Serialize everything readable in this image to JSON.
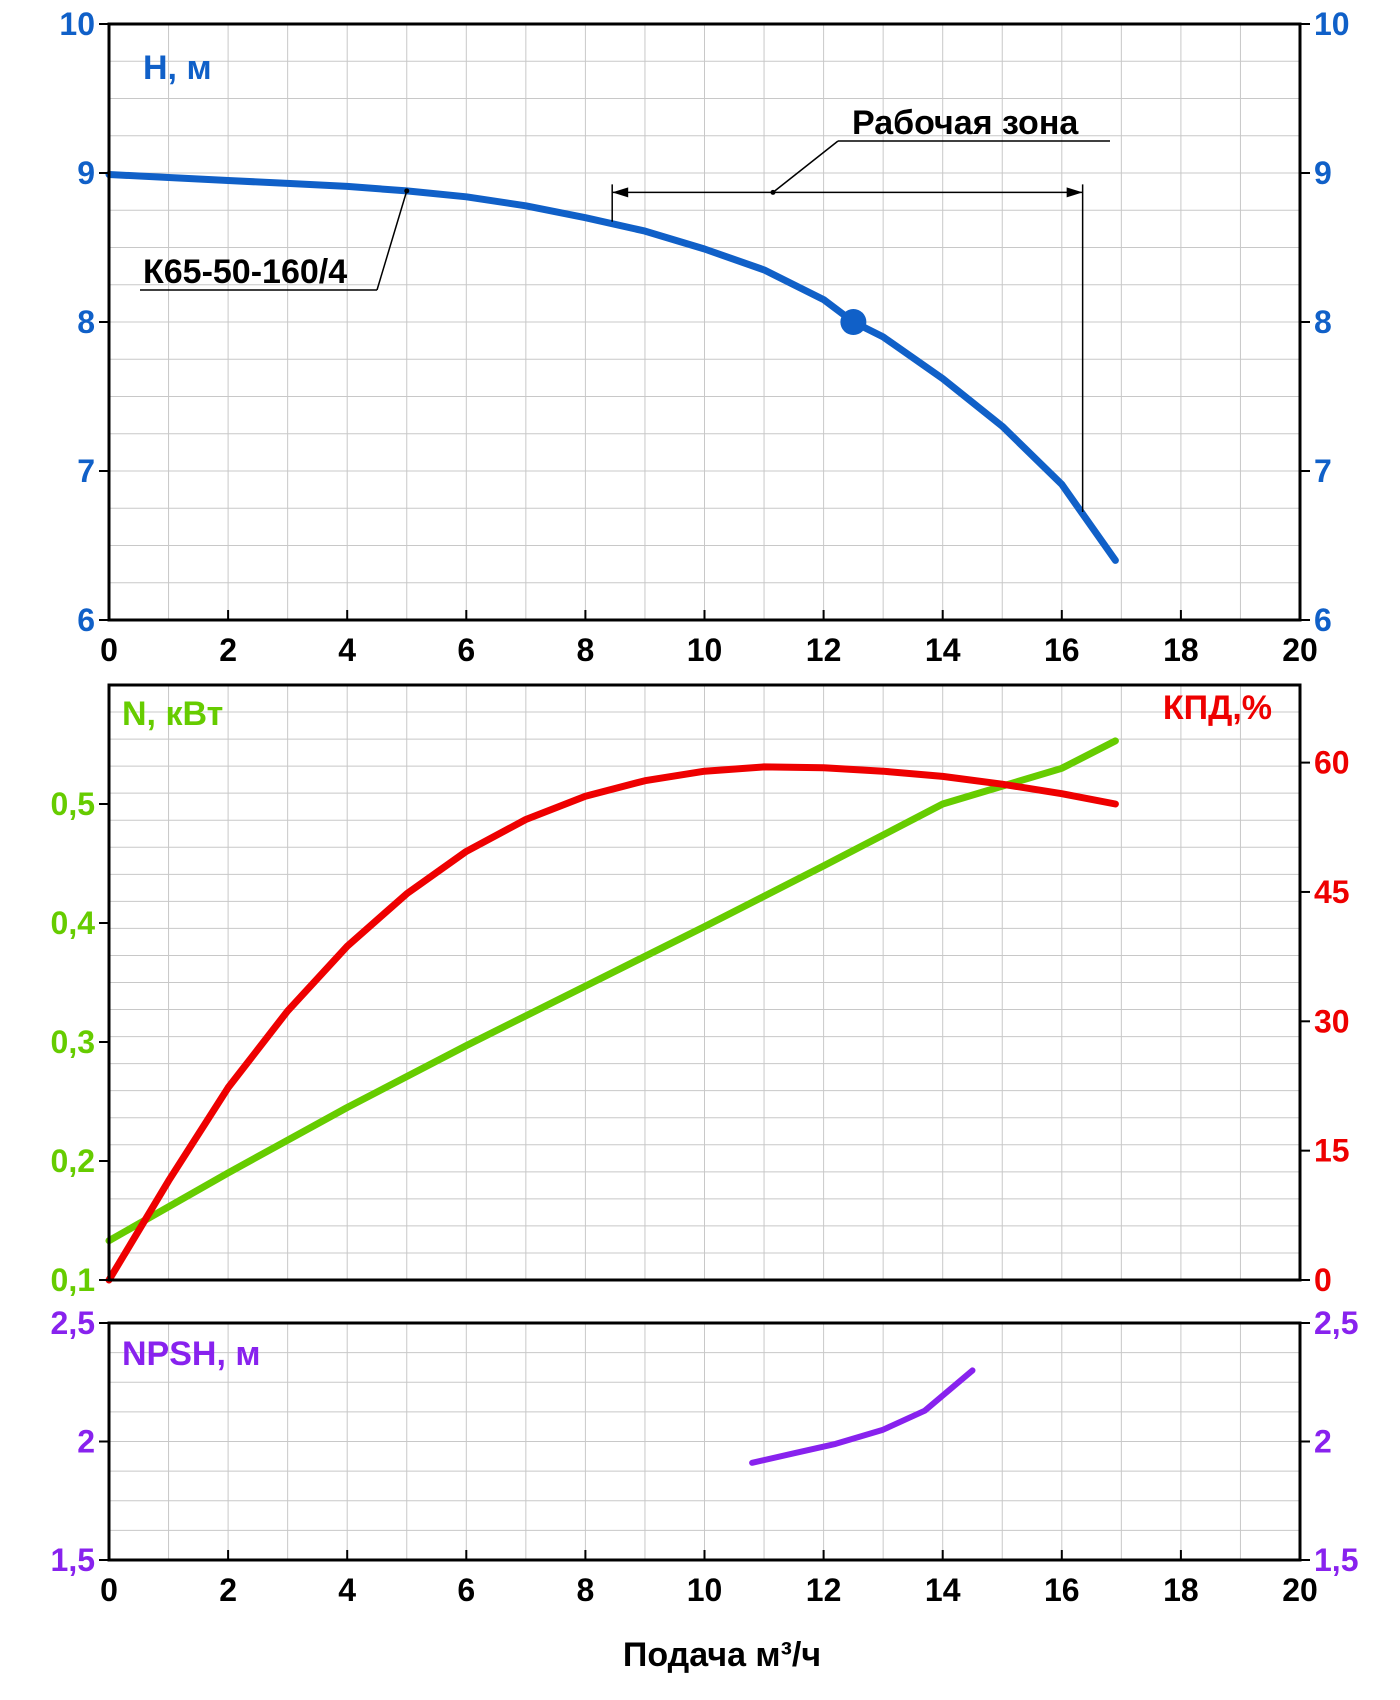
{
  "chart_data": [
    {
      "type": "line",
      "panel": "head",
      "ylabel": "H, м",
      "xlim": [
        0,
        20
      ],
      "ylim": [
        6,
        10
      ],
      "x_ticks": [
        0,
        2,
        4,
        6,
        8,
        10,
        12,
        14,
        16,
        18,
        20
      ],
      "y_ticks": [
        6,
        7,
        8,
        9,
        10
      ],
      "y_tick_labels": [
        "6",
        "7",
        "8",
        "9",
        "10"
      ],
      "series": [
        {
          "name": "К65-50-160/4",
          "color": "#1060c8",
          "x": [
            0,
            1,
            2,
            3,
            4,
            5,
            6,
            7,
            8,
            9,
            10,
            11,
            12,
            12.5,
            13,
            14,
            15,
            16,
            16.9
          ],
          "y": [
            8.99,
            8.97,
            8.95,
            8.93,
            8.91,
            8.88,
            8.84,
            8.78,
            8.7,
            8.61,
            8.49,
            8.35,
            8.15,
            8.0,
            7.9,
            7.62,
            7.3,
            6.91,
            6.4
          ]
        }
      ],
      "operating_point": {
        "x": 12.5,
        "y": 8.0
      },
      "annotation": {
        "text": "Рабочая зона",
        "x_from": 8.45,
        "x_to": 16.35,
        "y": 8.87
      },
      "curve_label": {
        "text": "К65-50-160/4",
        "x": 5.0,
        "y": 8.88
      },
      "grid": true
    },
    {
      "type": "line",
      "panel": "power-efficiency",
      "xlim": [
        0,
        20
      ],
      "ylabel_left": "N, кВт",
      "ylabel_right": "КПД,%",
      "ylim_left": [
        0.1,
        0.6
      ],
      "ylim_right": [
        0,
        69
      ],
      "left_ticks": [
        0.1,
        0.2,
        0.3,
        0.4,
        0.5
      ],
      "left_tick_labels": [
        "0,1",
        "0,2",
        "0,3",
        "0,4",
        "0,5"
      ],
      "right_ticks": [
        0,
        15,
        30,
        45,
        60
      ],
      "right_tick_labels": [
        "0",
        "15",
        "30",
        "45",
        "60"
      ],
      "series": [
        {
          "name": "N, кВт",
          "color": "#66cc00",
          "axis": "left",
          "x": [
            0,
            2,
            4,
            6,
            8,
            10,
            12,
            14,
            16,
            16.9
          ],
          "y": [
            0.133,
            0.19,
            0.245,
            0.297,
            0.347,
            0.397,
            0.448,
            0.5,
            0.53,
            0.553
          ]
        },
        {
          "name": "КПД,%",
          "color": "#ee0000",
          "axis": "right",
          "x": [
            0,
            1,
            2,
            3,
            4,
            5,
            6,
            7,
            8,
            9,
            10,
            11,
            12,
            13,
            14,
            15,
            16,
            16.9
          ],
          "y": [
            0,
            11.5,
            22.3,
            31.2,
            38.7,
            44.8,
            49.7,
            53.4,
            56.1,
            57.9,
            59.0,
            59.5,
            59.4,
            59.0,
            58.4,
            57.5,
            56.4,
            55.2
          ]
        }
      ],
      "grid": true
    },
    {
      "type": "line",
      "panel": "npsh",
      "ylabel": "NPSH, м",
      "xlabel": "Подача м³/ч",
      "xlim": [
        0,
        20
      ],
      "ylim": [
        1.5,
        2.5
      ],
      "x_ticks": [
        0,
        2,
        4,
        6,
        8,
        10,
        12,
        14,
        16,
        18,
        20
      ],
      "y_ticks": [
        1.5,
        2,
        2.5
      ],
      "y_tick_labels": [
        "1,5",
        "2",
        "2,5"
      ],
      "series": [
        {
          "name": "NPSH, м",
          "color": "#8822ee",
          "x": [
            10.8,
            11.5,
            12.2,
            13.0,
            13.7,
            14.5
          ],
          "y": [
            1.91,
            1.95,
            1.99,
            2.05,
            2.13,
            2.3
          ]
        }
      ],
      "grid": true
    }
  ],
  "colors": {
    "head": "#1060c8",
    "power": "#66cc00",
    "efficiency": "#ee0000",
    "npsh": "#8822ee",
    "grid": "#c8c8c8",
    "frame": "#000000"
  }
}
